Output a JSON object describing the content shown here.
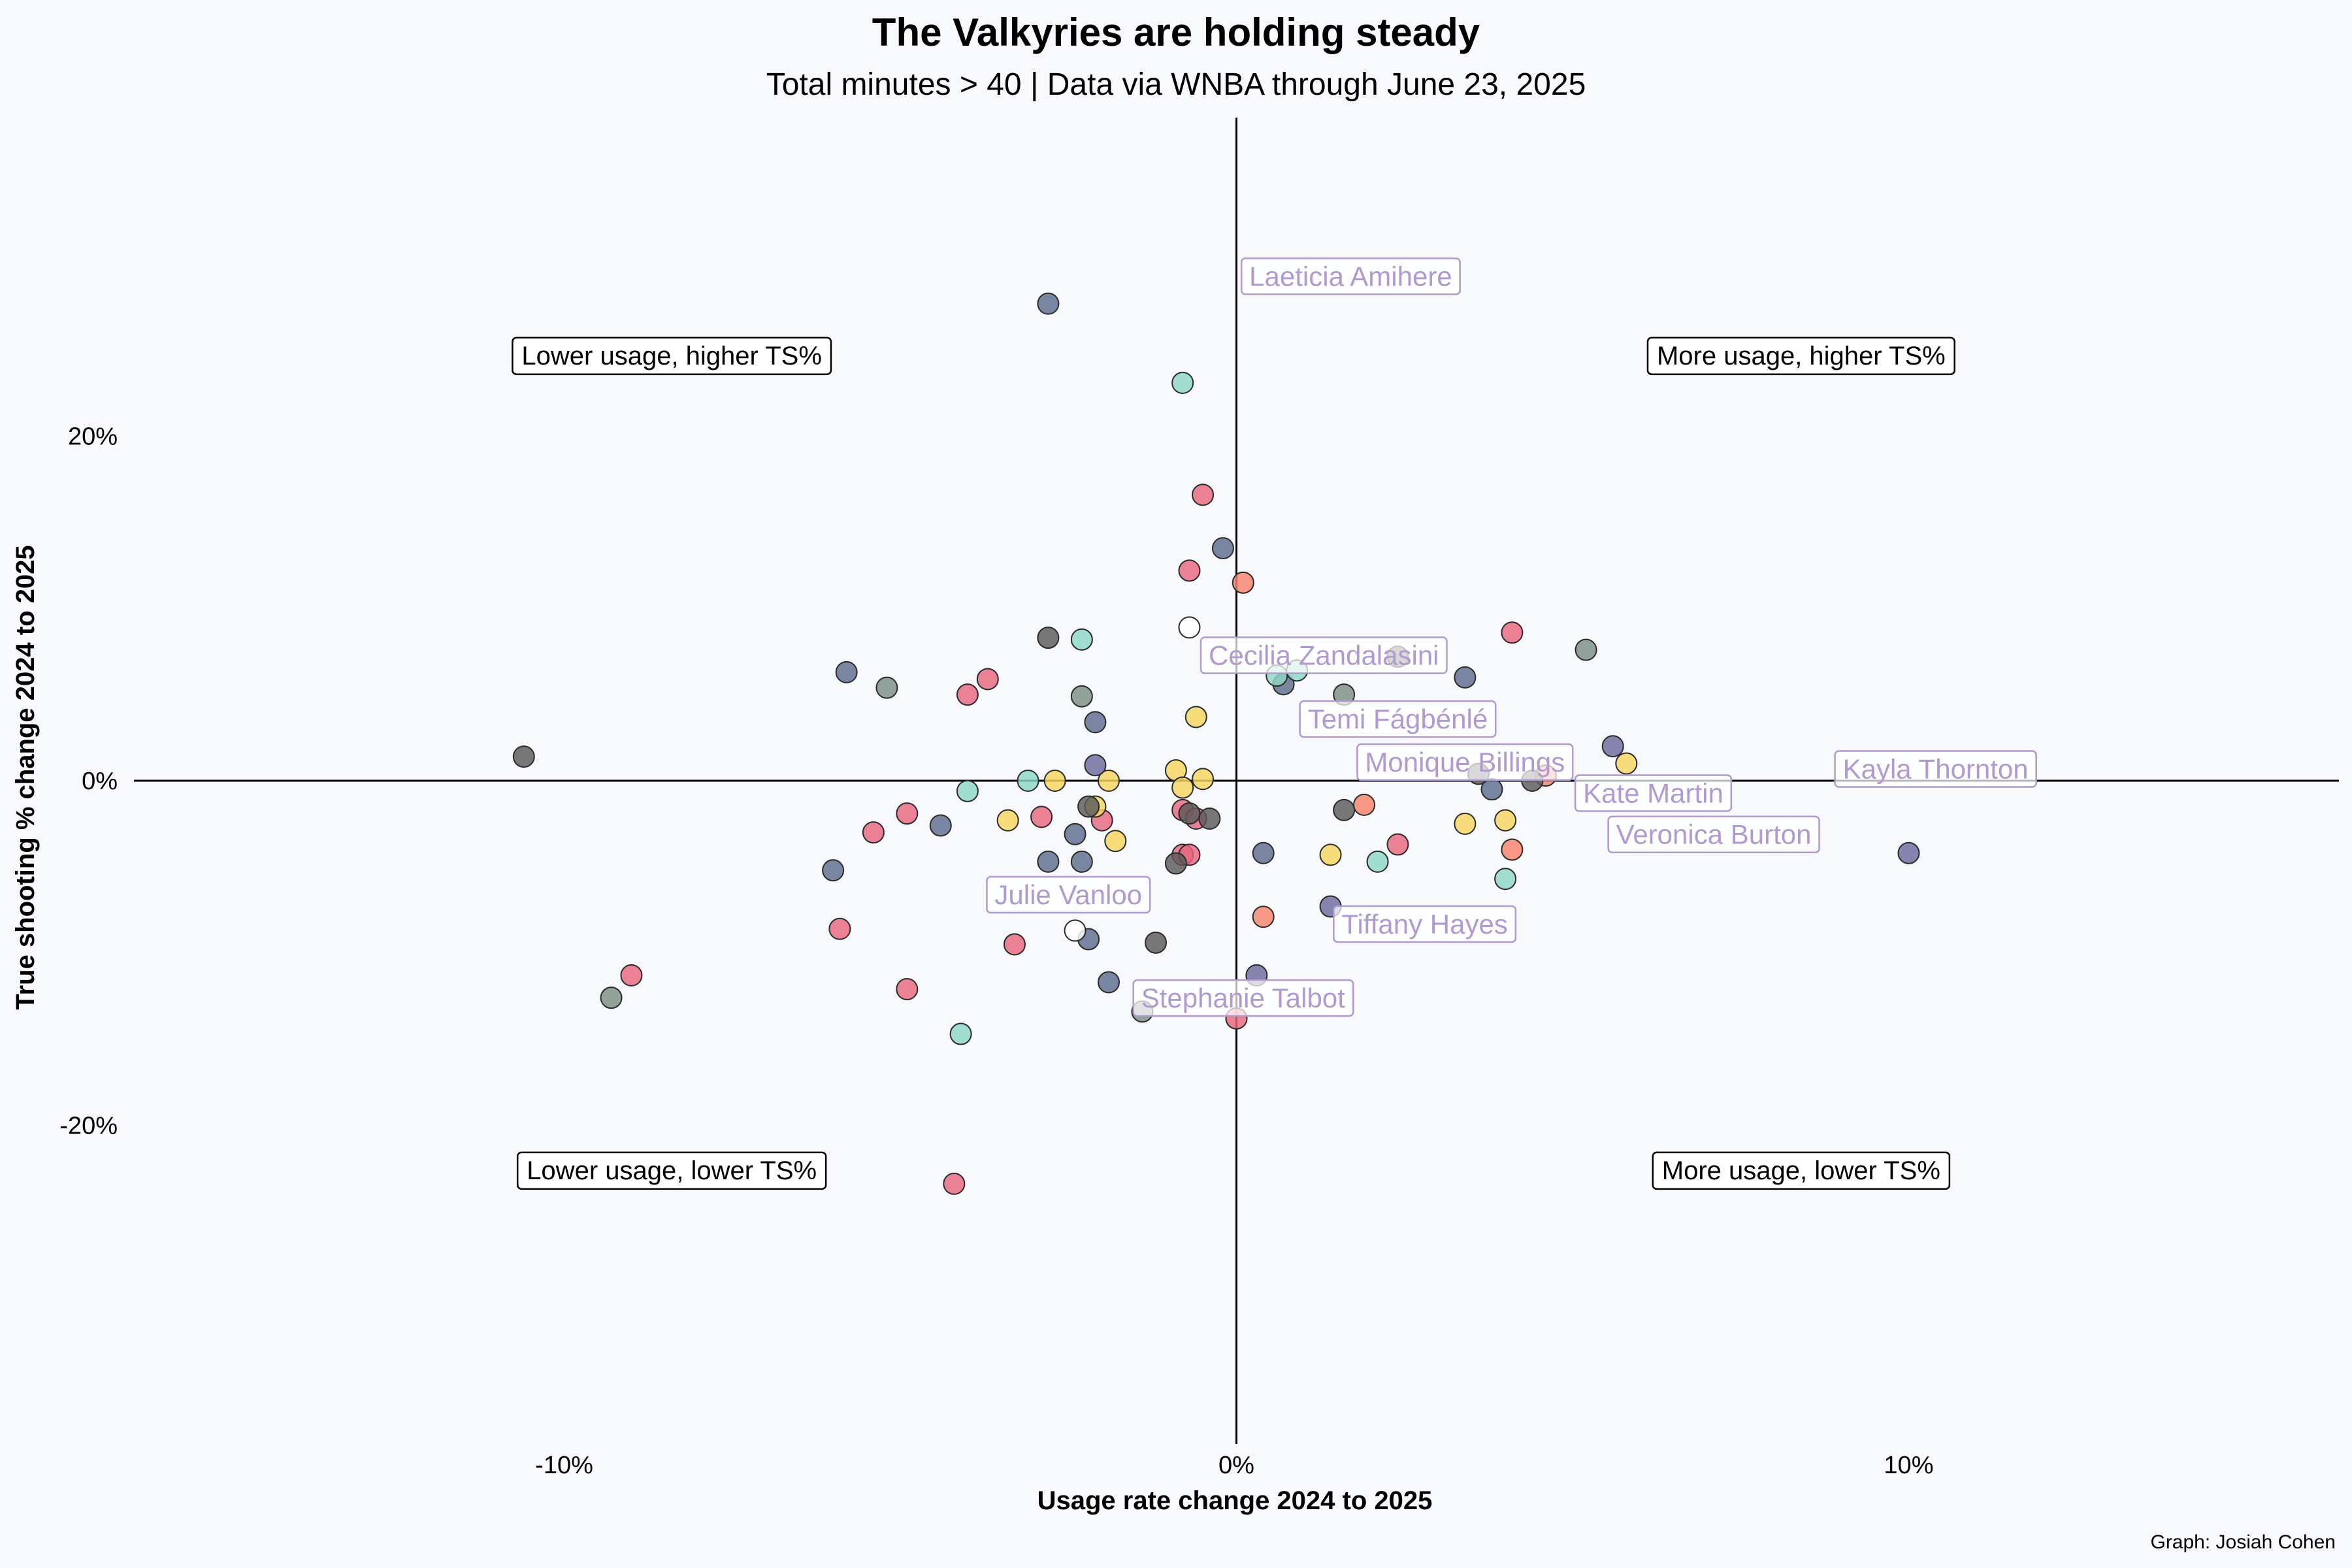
{
  "chart_data": {
    "type": "scatter",
    "title": "The Valkyries are holding steady",
    "subtitle": "Total minutes > 40   |  Data via WNBA through June 23, 2025",
    "xlabel": "Usage rate change 2024 to 2025",
    "ylabel": "True shooting % change 2024 to 2025",
    "caption": "Graph: Josiah Cohen",
    "xlim": [
      -16.4,
      16.4
    ],
    "ylim": [
      -38.5,
      38.5
    ],
    "x_ticks": [
      {
        "value": -10,
        "label": "-10%"
      },
      {
        "value": 0,
        "label": "0%"
      },
      {
        "value": 10,
        "label": "10%"
      }
    ],
    "y_ticks": [
      {
        "value": 20,
        "label": "20%"
      },
      {
        "value": 0,
        "label": "0%"
      },
      {
        "value": -20,
        "label": "-20%"
      }
    ],
    "grid": false,
    "quadrant_labels": [
      {
        "text": "Lower usage, higher TS%",
        "x": -8.4,
        "y": 24.7
      },
      {
        "text": "More usage, higher TS%",
        "x": 8.4,
        "y": 24.7
      },
      {
        "text": "Lower usage, lower TS%",
        "x": -8.4,
        "y": -22.6
      },
      {
        "text": "More usage, lower TS%",
        "x": 8.4,
        "y": -22.6
      }
    ],
    "player_labels": [
      {
        "name": "Laeticia Amihere",
        "x": 1.7,
        "y": 29.3
      },
      {
        "name": "Cecilia Zandalasini",
        "x": 1.3,
        "y": 7.3
      },
      {
        "name": "Temi Fágbénlé",
        "x": 2.4,
        "y": 3.6
      },
      {
        "name": "Monique Billings",
        "x": 3.4,
        "y": 1.1
      },
      {
        "name": "Kate Martin",
        "x": 6.2,
        "y": -0.7
      },
      {
        "name": "Veronica Burton",
        "x": 7.1,
        "y": -3.1
      },
      {
        "name": "Kayla Thornton",
        "x": 10.4,
        "y": 0.7
      },
      {
        "name": "Julie Vanloo",
        "x": -2.5,
        "y": -6.6
      },
      {
        "name": "Tiffany Hayes",
        "x": 2.8,
        "y": -8.3
      },
      {
        "name": "Stephanie Talbot",
        "x": 0.1,
        "y": -12.6
      }
    ],
    "series": [
      {
        "color": "#5d6d8c",
        "points": [
          [
            -2.8,
            27.7
          ],
          [
            -0.2,
            13.5
          ],
          [
            -5.8,
            6.3
          ],
          [
            -2.1,
            3.4
          ],
          [
            3.4,
            6.0
          ],
          [
            3.8,
            -0.5
          ],
          [
            -4.4,
            -2.6
          ],
          [
            -2.4,
            -3.1
          ],
          [
            -2.8,
            -4.7
          ],
          [
            -2.3,
            -4.7
          ],
          [
            -6.0,
            -5.2
          ],
          [
            0.4,
            -4.2
          ],
          [
            -2.2,
            -9.2
          ],
          [
            -1.9,
            -11.7
          ],
          [
            0.7,
            5.6
          ]
        ]
      },
      {
        "color": "#e8677c",
        "points": [
          [
            -0.5,
            16.6
          ],
          [
            -0.7,
            12.2
          ],
          [
            4.1,
            8.6
          ],
          [
            -4.0,
            5.0
          ],
          [
            -3.7,
            5.9
          ],
          [
            -5.4,
            -3.0
          ],
          [
            -4.9,
            -1.9
          ],
          [
            -2.9,
            -2.1
          ],
          [
            -2.0,
            -2.3
          ],
          [
            -0.8,
            -1.7
          ],
          [
            -0.6,
            -2.2
          ],
          [
            -0.8,
            -4.3
          ],
          [
            -0.7,
            -4.3
          ],
          [
            2.4,
            -3.7
          ],
          [
            -5.9,
            -8.6
          ],
          [
            -3.3,
            -9.5
          ],
          [
            -4.9,
            -12.1
          ],
          [
            -9.0,
            -11.3
          ],
          [
            -4.2,
            -23.4
          ],
          [
            0.0,
            -13.8
          ]
        ]
      },
      {
        "color": "#f5826a",
        "points": [
          [
            0.1,
            11.5
          ],
          [
            4.6,
            0.3
          ],
          [
            1.9,
            -1.4
          ],
          [
            4.1,
            -4.0
          ],
          [
            0.4,
            -7.9
          ]
        ]
      },
      {
        "color": "#7a8f84",
        "points": [
          [
            -5.2,
            5.4
          ],
          [
            -2.3,
            4.9
          ],
          [
            5.2,
            7.6
          ],
          [
            1.6,
            5.0
          ],
          [
            -9.3,
            -12.6
          ],
          [
            -1.4,
            -13.4
          ]
        ]
      },
      {
        "color": "#8ed7c7",
        "points": [
          [
            -0.8,
            23.1
          ],
          [
            -4.0,
            -0.6
          ],
          [
            -3.1,
            0.0
          ],
          [
            -2.3,
            8.2
          ],
          [
            0.6,
            6.1
          ],
          [
            0.9,
            6.4
          ],
          [
            2.1,
            -4.7
          ],
          [
            4.0,
            -5.7
          ],
          [
            -4.1,
            -14.7
          ]
        ]
      },
      {
        "color": "#f7d55e",
        "points": [
          [
            -0.6,
            3.7
          ],
          [
            -0.9,
            0.6
          ],
          [
            -0.8,
            -0.4
          ],
          [
            -0.5,
            0.1
          ],
          [
            -2.7,
            0.0
          ],
          [
            -1.9,
            0.0
          ],
          [
            -3.4,
            -2.3
          ],
          [
            -2.1,
            -1.5
          ],
          [
            -1.8,
            -3.5
          ],
          [
            1.4,
            -4.3
          ],
          [
            3.4,
            -2.5
          ],
          [
            4.0,
            -2.3
          ],
          [
            5.8,
            1.0
          ]
        ]
      },
      {
        "color": "#6a6a9c",
        "points": [
          [
            -2.1,
            0.9
          ],
          [
            5.6,
            2.0
          ],
          [
            10.0,
            -4.2
          ],
          [
            1.4,
            -7.3
          ],
          [
            0.3,
            -11.3
          ]
        ]
      },
      {
        "color": "#5a5a5a",
        "points": [
          [
            -2.8,
            8.3
          ],
          [
            2.4,
            7.2
          ],
          [
            -10.6,
            1.4
          ],
          [
            4.4,
            0.0
          ],
          [
            3.6,
            0.4
          ],
          [
            -0.4,
            -2.2
          ],
          [
            -0.9,
            -4.8
          ],
          [
            -2.2,
            -1.5
          ],
          [
            1.6,
            -1.7
          ],
          [
            -1.2,
            -9.4
          ],
          [
            -0.7,
            -1.9
          ]
        ]
      },
      {
        "color": "#ffffff",
        "points": [
          [
            -0.7,
            8.9
          ],
          [
            -2.4,
            -8.7
          ]
        ]
      }
    ]
  }
}
